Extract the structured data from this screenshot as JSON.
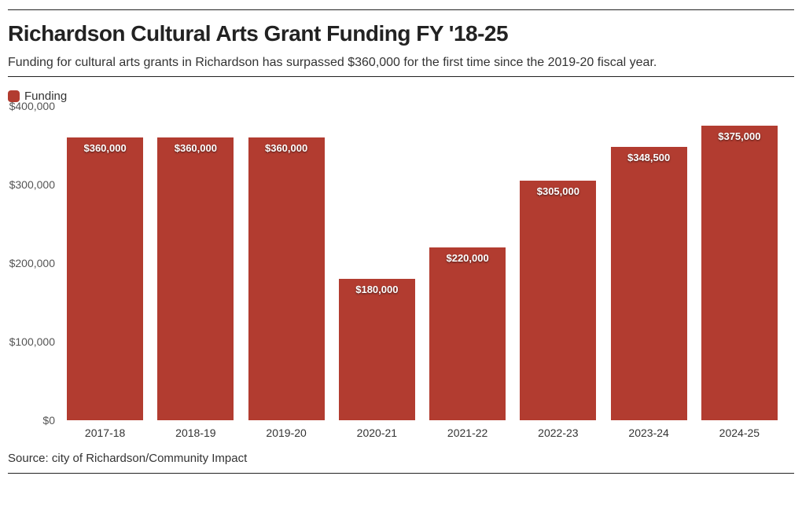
{
  "chart": {
    "type": "bar",
    "title": "Richardson Cultural Arts Grant Funding FY '18-25",
    "subtitle": "Funding for cultural arts grants in Richardson has surpassed $360,000 for the first time since the 2019-20 fiscal year.",
    "legend_label": "Funding",
    "source": "Source: city of Richardson/Community Impact",
    "categories": [
      "2017-18",
      "2018-19",
      "2019-20",
      "2020-21",
      "2021-22",
      "2022-23",
      "2023-24",
      "2024-25"
    ],
    "values": [
      360000,
      360000,
      360000,
      180000,
      220000,
      305000,
      348500,
      375000
    ],
    "value_labels": [
      "$360,000",
      "$360,000",
      "$360,000",
      "$180,000",
      "$220,000",
      "$305,000",
      "$348,500",
      "$375,000"
    ],
    "bar_color": "#b23c30",
    "ylim": [
      0,
      400000
    ],
    "ytick_step": 100000,
    "ytick_labels": [
      "$0",
      "$100,000",
      "$200,000",
      "$300,000",
      "$400,000"
    ],
    "background_color": "#ffffff",
    "text_color": "#333333",
    "title_fontsize": 28,
    "subtitle_fontsize": 16,
    "axis_fontsize": 14,
    "bar_label_fontsize": 13,
    "bar_width": 0.84
  }
}
